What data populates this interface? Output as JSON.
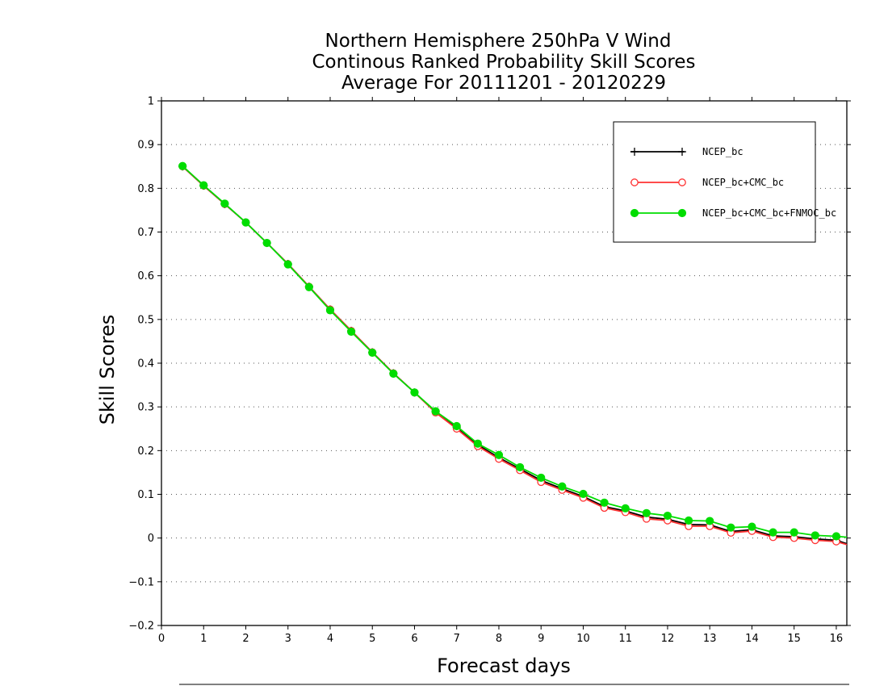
{
  "chart_data": {
    "type": "line",
    "title_lines": [
      "Northern Hemisphere 250hPa V Wind",
      "Continous Ranked Probability Skill Scores",
      "Average For 20111201 - 20120229"
    ],
    "xlabel": "Forecast days",
    "ylabel": "Skill Scores",
    "xlim": [
      0,
      16.25
    ],
    "ylim": [
      -0.2,
      1
    ],
    "x_ticks": [
      0,
      1,
      2,
      3,
      4,
      5,
      6,
      7,
      8,
      9,
      10,
      11,
      12,
      13,
      14,
      15,
      16
    ],
    "y_ticks": [
      -0.2,
      -0.1,
      0,
      0.1,
      0.2,
      0.3,
      0.4,
      0.5,
      0.6,
      0.7,
      0.8,
      0.9,
      1
    ],
    "y_tick_labels": [
      "−0.2",
      "−0.1",
      "0",
      "0.1",
      "0.2",
      "0.3",
      "0.4",
      "0.5",
      "0.6",
      "0.7",
      "0.8",
      "0.9",
      "1"
    ],
    "grid": "horizontal dotted",
    "legend_position": "top-right",
    "x": [
      0.5,
      1,
      1.5,
      2,
      2.5,
      3,
      3.5,
      4,
      4.5,
      5,
      5.5,
      6,
      6.5,
      7,
      7.5,
      8,
      8.5,
      9,
      9.5,
      10,
      10.5,
      11,
      11.5,
      12,
      12.5,
      13,
      13.5,
      14,
      14.5,
      15,
      15.5,
      16,
      16.25
    ],
    "series": [
      {
        "name": "NCEP_bc",
        "color": "#000000",
        "marker": "plus",
        "values": [
          0.85,
          0.806,
          0.764,
          0.722,
          0.675,
          0.627,
          0.575,
          0.523,
          0.474,
          0.425,
          0.377,
          0.333,
          0.289,
          0.253,
          0.213,
          0.184,
          0.158,
          0.132,
          0.113,
          0.095,
          0.072,
          0.062,
          0.048,
          0.043,
          0.031,
          0.03,
          0.015,
          0.019,
          0.005,
          0.003,
          -0.002,
          -0.005,
          -0.013
        ]
      },
      {
        "name": "NCEP_bc+CMC_bc",
        "color": "#ff3333",
        "marker": "open-circle",
        "values": [
          0.85,
          0.806,
          0.764,
          0.722,
          0.675,
          0.627,
          0.575,
          0.523,
          0.474,
          0.425,
          0.377,
          0.333,
          0.287,
          0.25,
          0.21,
          0.181,
          0.155,
          0.128,
          0.11,
          0.092,
          0.069,
          0.059,
          0.044,
          0.04,
          0.027,
          0.027,
          0.012,
          0.016,
          0.002,
          0.0,
          -0.005,
          -0.008,
          -0.015
        ]
      },
      {
        "name": "NCEP_bc+CMC_bc+FNMOC_bc",
        "color": "#00dd00",
        "marker": "filled-circle",
        "values": [
          0.851,
          0.807,
          0.765,
          0.722,
          0.675,
          0.626,
          0.574,
          0.521,
          0.472,
          0.424,
          0.376,
          0.333,
          0.29,
          0.256,
          0.216,
          0.19,
          0.162,
          0.138,
          0.118,
          0.101,
          0.081,
          0.068,
          0.057,
          0.051,
          0.04,
          0.039,
          0.024,
          0.026,
          0.013,
          0.013,
          0.006,
          0.004,
          0.002
        ]
      }
    ]
  }
}
